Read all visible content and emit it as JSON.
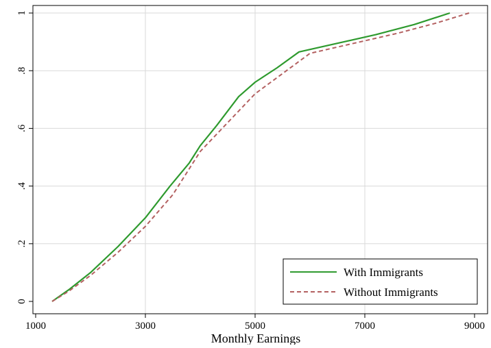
{
  "chart_data": {
    "type": "line",
    "title": "",
    "xlabel": "Monthly Earnings",
    "ylabel": "",
    "xlim": [
      1000,
      9000
    ],
    "ylim": [
      0,
      1
    ],
    "xticks": [
      1000,
      3000,
      5000,
      7000,
      9000
    ],
    "xtick_labels": [
      "1000",
      "3000",
      "5000",
      "7000",
      "9000"
    ],
    "yticks": [
      0,
      0.2,
      0.4,
      0.6,
      0.8,
      1
    ],
    "ytick_labels": [
      "0",
      ".2",
      ".4",
      ".6",
      ".8",
      "1"
    ],
    "grid": true,
    "legend_position": "bottom-right",
    "series": [
      {
        "name": "With Immigrants",
        "color": "#2e9a2e",
        "style": "solid",
        "x": [
          1300,
          1600,
          2000,
          2500,
          3000,
          3450,
          3800,
          4000,
          4300,
          4700,
          5000,
          5400,
          5800,
          6500,
          7200,
          7900,
          8550
        ],
        "y": [
          0,
          0.04,
          0.1,
          0.19,
          0.29,
          0.4,
          0.48,
          0.54,
          0.61,
          0.71,
          0.76,
          0.81,
          0.865,
          0.895,
          0.925,
          0.96,
          1.0
        ]
      },
      {
        "name": "Without Immigrants",
        "color": "#b36060",
        "style": "dashed",
        "x": [
          1300,
          1600,
          2000,
          2500,
          3000,
          3500,
          4000,
          4500,
          5000,
          5500,
          6000,
          6800,
          7600,
          8300,
          8900
        ],
        "y": [
          0,
          0.035,
          0.09,
          0.17,
          0.26,
          0.37,
          0.52,
          0.62,
          0.72,
          0.79,
          0.86,
          0.895,
          0.93,
          0.965,
          1.0
        ]
      }
    ]
  }
}
